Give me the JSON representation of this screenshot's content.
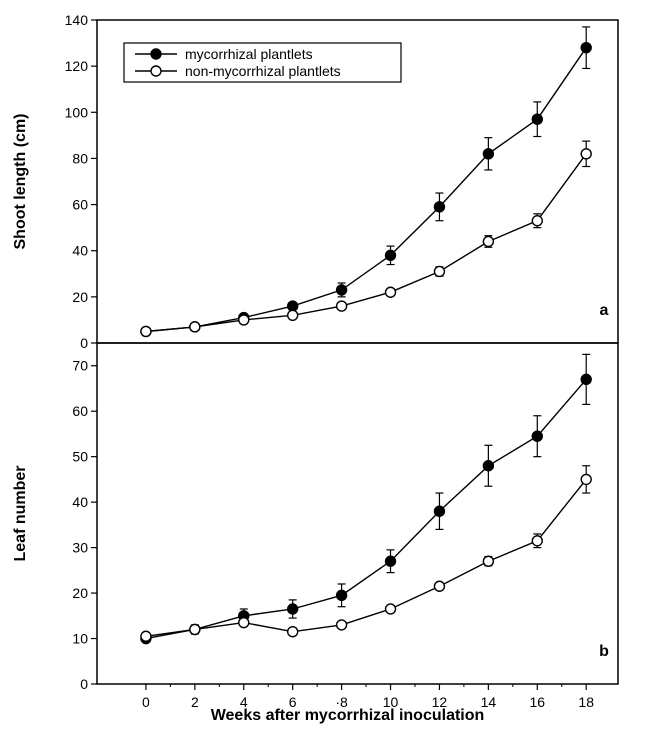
{
  "chart_data": [
    {
      "type": "line",
      "panel_label": "a",
      "ylabel": "Shoot length (cm)",
      "ylim": [
        0,
        140
      ],
      "yticks": [
        "0",
        "20",
        "40",
        "60",
        "80",
        "100",
        "120",
        "140"
      ],
      "xlim": [
        -2,
        19.3
      ],
      "x": [
        0,
        2,
        4,
        6,
        8,
        10,
        12,
        14,
        16,
        18
      ],
      "legend_position": "top-left",
      "series": [
        {
          "name": "mycorrhizal plantlets",
          "marker": "filled-circle",
          "values": [
            5,
            7,
            11,
            16,
            23,
            38,
            59,
            82,
            97,
            128
          ],
          "errors": [
            0,
            0,
            1,
            1.5,
            3,
            4,
            6,
            7,
            7.5,
            9
          ]
        },
        {
          "name": "non-mycorrhizal plantlets",
          "marker": "open-circle",
          "values": [
            5,
            7,
            10,
            12,
            16,
            22,
            31,
            44,
            53,
            82
          ],
          "errors": [
            0,
            0,
            1,
            1,
            1,
            1.5,
            2,
            2.5,
            3,
            5.5
          ]
        }
      ]
    },
    {
      "type": "line",
      "panel_label": "b",
      "ylabel": "Leaf number",
      "ylim": [
        0,
        75
      ],
      "yticks": [
        "0",
        "10",
        "20",
        "30",
        "40",
        "50",
        "60",
        "70"
      ],
      "xlim": [
        -2,
        19.3
      ],
      "x": [
        0,
        2,
        4,
        6,
        8,
        10,
        12,
        14,
        16,
        18
      ],
      "xticks": [
        "0",
        "2",
        "4",
        "6",
        "·8",
        "10",
        "12",
        "14",
        "16",
        "18"
      ],
      "xlabel": "Weeks after mycorrhizal inoculation",
      "series": [
        {
          "name": "mycorrhizal plantlets",
          "marker": "filled-circle",
          "values": [
            10,
            12,
            15,
            16.5,
            19.5,
            27,
            38,
            48,
            54.5,
            67
          ],
          "errors": [
            0.5,
            1,
            1.5,
            2,
            2.5,
            2.5,
            4,
            4.5,
            4.5,
            5.5
          ]
        },
        {
          "name": "non-mycorrhizal plantlets",
          "marker": "open-circle",
          "values": [
            10.5,
            12,
            13.5,
            11.5,
            13,
            16.5,
            21.5,
            27,
            31.5,
            45
          ],
          "errors": [
            0,
            0,
            0,
            0,
            0,
            0.5,
            0.5,
            1,
            1.5,
            3
          ]
        }
      ]
    }
  ]
}
